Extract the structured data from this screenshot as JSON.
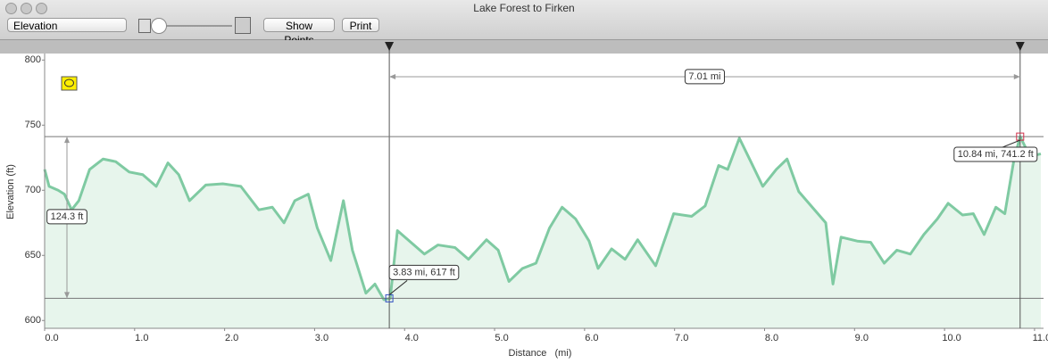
{
  "window": {
    "title": "Lake Forest to Firken"
  },
  "toolbar": {
    "select": "Elevation",
    "buttons": [
      "Show Points",
      "Print"
    ]
  },
  "chart_data": {
    "type": "line",
    "x_label": "Distance   (mi)",
    "y_label": "Elevation (ft)",
    "x": [
      0.0,
      0.05,
      0.15,
      0.22,
      0.3,
      0.38,
      0.5,
      0.65,
      0.79,
      0.94,
      1.09,
      1.24,
      1.37,
      1.49,
      1.61,
      1.79,
      1.98,
      2.18,
      2.38,
      2.53,
      2.66,
      2.78,
      2.93,
      3.03,
      3.18,
      3.32,
      3.42,
      3.57,
      3.67,
      3.77,
      3.84,
      3.92,
      4.07,
      4.22,
      4.37,
      4.56,
      4.71,
      4.91,
      5.04,
      5.16,
      5.31,
      5.46,
      5.61,
      5.75,
      5.9,
      6.05,
      6.15,
      6.3,
      6.45,
      6.59,
      6.79,
      6.99,
      7.19,
      7.34,
      7.49,
      7.59,
      7.72,
      7.84,
      7.98,
      8.13,
      8.25,
      8.38,
      8.53,
      8.68,
      8.76,
      8.85,
      9.03,
      9.18,
      9.33,
      9.47,
      9.62,
      9.77,
      9.92,
      10.04,
      10.2,
      10.32,
      10.44,
      10.57,
      10.67,
      10.77,
      10.84,
      10.95,
      11.07
    ],
    "values": [
      716,
      703,
      700,
      697,
      685,
      692,
      716,
      724,
      722,
      714,
      712,
      703,
      721,
      712,
      692,
      704,
      705,
      703,
      685,
      687,
      675,
      692,
      697,
      671,
      646,
      692,
      654,
      621,
      628,
      616,
      617,
      669,
      660,
      651,
      658,
      656,
      647,
      662,
      654,
      630,
      640,
      644,
      671,
      687,
      678,
      661,
      640,
      655,
      647,
      662,
      642,
      682,
      680,
      688,
      719,
      716,
      740,
      723,
      703,
      716,
      724,
      699,
      687,
      675,
      628,
      664,
      661,
      660,
      644,
      654,
      651,
      666,
      678,
      690,
      681,
      682,
      666,
      687,
      682,
      723,
      741.2,
      726,
      728
    ],
    "color": "#7fcaa2",
    "fill": "#e7f5ec",
    "xlim": [
      0,
      11.1
    ],
    "ylim": [
      594,
      805
    ],
    "xticks": [
      {
        "value": 0,
        "label": "0.0"
      },
      {
        "value": 1,
        "label": "1.0"
      },
      {
        "value": 2,
        "label": "2.0"
      },
      {
        "value": 3,
        "label": "3.0"
      },
      {
        "value": 4,
        "label": "4.0"
      },
      {
        "value": 5,
        "label": "5.0"
      },
      {
        "value": 6,
        "label": "6.0"
      },
      {
        "value": 7,
        "label": "7.0"
      },
      {
        "value": 8,
        "label": "8.0"
      },
      {
        "value": 9,
        "label": "9.0"
      },
      {
        "value": 10,
        "label": "10.0"
      },
      {
        "value": 11,
        "label": "11.0"
      }
    ],
    "yticks": [
      600,
      650,
      700,
      750,
      800
    ],
    "cursors": [
      {
        "x": 3.83,
        "y": 617,
        "label": "3.83 mi, 617 ft"
      },
      {
        "x": 10.84,
        "y": 741.2,
        "label": "10.84 mi, 741.2 ft"
      }
    ],
    "distance_label": "7.01 mi",
    "elevation_change_label": "124.3 ft"
  }
}
